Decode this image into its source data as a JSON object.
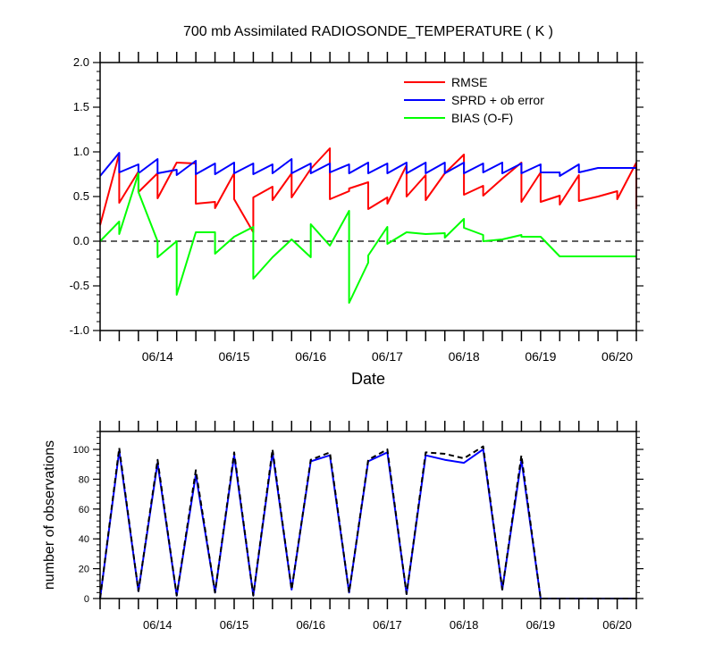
{
  "chart_data": [
    {
      "type": "line",
      "title": "700 mb Assimilated RADIOSONDE_TEMPERATURE ( K )",
      "xlabel": "Date",
      "ylabel": "",
      "xlim": [
        0,
        7
      ],
      "ylim": [
        -1.0,
        2.0
      ],
      "yticks": [
        -1.0,
        -0.5,
        0.0,
        0.5,
        1.0,
        1.5,
        2.0
      ],
      "ytick_labels": [
        "-1.0",
        "-0.5",
        "0.0",
        "0.5",
        "1.0",
        "1.5",
        "2.0"
      ],
      "x_tick_labels": [
        "06/14",
        "06/15",
        "06/16",
        "06/17",
        "06/18",
        "06/19",
        "06/20"
      ],
      "x_tick_positions": [
        0.75,
        1.75,
        2.75,
        3.75,
        4.75,
        5.75,
        6.75
      ],
      "x_units": "days after 06/13 06Z (6-hourly cycles)",
      "zero_line": "dashed",
      "legend": "top-right",
      "series": [
        {
          "name": "RMSE",
          "color": "#ff0000",
          "x": [
            0.0,
            0.25,
            0.25,
            0.5,
            0.5,
            0.75,
            0.75,
            1.0,
            1.0,
            1.25,
            1.25,
            1.5,
            1.5,
            1.75,
            1.75,
            2.0,
            2.0,
            2.25,
            2.25,
            2.5,
            2.5,
            2.75,
            2.75,
            3.0,
            3.0,
            3.25,
            3.25,
            3.5,
            3.5,
            3.75,
            3.75,
            4.0,
            4.0,
            4.25,
            4.25,
            4.5,
            4.5,
            4.75,
            4.75,
            5.0,
            5.0,
            5.25,
            5.25,
            5.5,
            5.5,
            5.75,
            5.75,
            6.0,
            6.0,
            6.25,
            6.25,
            6.5,
            6.5,
            6.75,
            6.75,
            7.0,
            7.0
          ],
          "y": [
            0.18,
            0.98,
            0.43,
            0.78,
            0.55,
            0.76,
            0.48,
            0.88,
            0.88,
            0.87,
            0.42,
            0.44,
            0.37,
            0.76,
            0.47,
            0.1,
            0.49,
            0.61,
            0.46,
            0.76,
            0.49,
            0.81,
            0.81,
            1.04,
            0.47,
            0.56,
            0.59,
            0.66,
            0.36,
            0.49,
            0.42,
            0.85,
            0.5,
            0.74,
            0.46,
            0.76,
            0.76,
            0.97,
            0.52,
            0.62,
            0.51,
            0.7,
            0.7,
            0.88,
            0.44,
            0.77,
            0.44,
            0.51,
            0.41,
            0.74,
            0.45,
            0.5,
            0.5,
            0.56,
            0.47,
            0.88,
            0.36
          ]
        },
        {
          "name": "SPRD + ob error",
          "color": "#0000ff",
          "x": [
            0.0,
            0.25,
            0.25,
            0.5,
            0.5,
            0.75,
            0.75,
            1.0,
            1.0,
            1.25,
            1.25,
            1.5,
            1.5,
            1.75,
            1.75,
            2.0,
            2.0,
            2.25,
            2.25,
            2.5,
            2.5,
            2.75,
            2.75,
            3.0,
            3.0,
            3.25,
            3.25,
            3.5,
            3.5,
            3.75,
            3.75,
            4.0,
            4.0,
            4.25,
            4.25,
            4.5,
            4.5,
            4.75,
            4.75,
            5.0,
            5.0,
            5.25,
            5.25,
            5.5,
            5.5,
            5.75,
            5.75,
            6.0,
            6.0,
            6.25,
            6.25,
            6.5,
            6.5,
            6.75,
            6.75,
            7.0
          ],
          "y": [
            0.73,
            0.99,
            0.77,
            0.86,
            0.76,
            0.92,
            0.76,
            0.8,
            0.74,
            0.9,
            0.75,
            0.87,
            0.75,
            0.88,
            0.76,
            0.87,
            0.75,
            0.86,
            0.76,
            0.92,
            0.76,
            0.87,
            0.76,
            0.87,
            0.77,
            0.86,
            0.76,
            0.88,
            0.76,
            0.87,
            0.76,
            0.88,
            0.76,
            0.88,
            0.76,
            0.88,
            0.76,
            0.88,
            0.76,
            0.87,
            0.77,
            0.88,
            0.76,
            0.87,
            0.76,
            0.86,
            0.77,
            0.77,
            0.73,
            0.86,
            0.77,
            0.82,
            0.82,
            0.82,
            0.82,
            0.82
          ]
        },
        {
          "name": "BIAS (O-F)",
          "color": "#00ff00",
          "x": [
            0.0,
            0.25,
            0.25,
            0.5,
            0.5,
            0.75,
            0.75,
            1.0,
            1.0,
            1.25,
            1.25,
            1.5,
            1.5,
            1.75,
            1.75,
            2.0,
            2.0,
            2.25,
            2.25,
            2.5,
            2.5,
            2.75,
            2.75,
            3.0,
            3.0,
            3.25,
            3.25,
            3.5,
            3.5,
            3.75,
            3.75,
            4.0,
            4.0,
            4.25,
            4.25,
            4.5,
            4.5,
            4.75,
            4.75,
            5.0,
            5.0,
            5.25,
            5.25,
            5.5,
            5.5,
            5.75,
            5.75,
            6.0,
            6.0,
            6.25,
            6.25,
            6.5,
            6.5,
            6.75,
            6.75,
            7.0
          ],
          "y": [
            0.0,
            0.22,
            0.08,
            0.76,
            0.55,
            0.0,
            -0.18,
            0.0,
            -0.6,
            0.1,
            0.1,
            0.1,
            -0.14,
            0.05,
            0.05,
            0.16,
            -0.42,
            -0.18,
            -0.18,
            0.02,
            0.02,
            -0.18,
            0.19,
            -0.05,
            -0.05,
            0.34,
            -0.69,
            -0.24,
            -0.16,
            0.16,
            -0.03,
            0.1,
            0.1,
            0.08,
            0.08,
            0.09,
            0.04,
            0.25,
            0.15,
            0.07,
            0.0,
            0.02,
            0.02,
            0.07,
            0.05,
            0.05,
            0.05,
            -0.17,
            -0.17,
            -0.17,
            -0.17,
            -0.17,
            -0.17,
            -0.17,
            -0.17,
            -0.17
          ]
        }
      ]
    },
    {
      "type": "line",
      "title": "",
      "xlabel": "",
      "ylabel": "number of observations",
      "xlim": [
        0,
        7
      ],
      "ylim": [
        0,
        112
      ],
      "yticks": [
        0,
        20,
        40,
        60,
        80,
        100
      ],
      "ytick_labels": [
        "0",
        "20",
        "40",
        "60",
        "80",
        "100"
      ],
      "x_tick_labels": [
        "06/14",
        "06/15",
        "06/16",
        "06/17",
        "06/18",
        "06/19",
        "06/20"
      ],
      "x_tick_positions": [
        0.75,
        1.75,
        2.75,
        3.75,
        4.75,
        5.75,
        6.75
      ],
      "series": [
        {
          "name": "",
          "color": "#0000ff",
          "style": "solid",
          "x": [
            0.0,
            0.25,
            0.5,
            0.75,
            1.0,
            1.25,
            1.5,
            1.75,
            2.0,
            2.25,
            2.5,
            2.75,
            3.0,
            3.25,
            3.5,
            3.75,
            4.0,
            4.25,
            4.5,
            4.75,
            5.0,
            5.25,
            5.5,
            5.75,
            6.0,
            6.25,
            6.5,
            6.75,
            7.0
          ],
          "y": [
            0,
            99,
            5,
            91,
            2,
            83,
            4,
            96,
            2,
            98,
            6,
            92,
            96,
            4,
            92,
            98,
            3,
            96,
            93,
            91,
            100,
            6,
            93,
            0,
            0,
            0,
            0,
            0,
            0
          ]
        },
        {
          "name": "",
          "color": "#000000",
          "style": "dashed",
          "x": [
            0.0,
            0.25,
            0.5,
            0.75,
            1.0,
            1.25,
            1.5,
            1.75,
            2.0,
            2.25,
            2.5,
            2.75,
            3.0,
            3.25,
            3.5,
            3.75,
            4.0,
            4.25,
            4.5,
            4.75,
            5.0,
            5.25,
            5.5,
            5.75,
            6.0,
            6.25,
            6.5,
            6.75,
            7.0
          ],
          "y": [
            0,
            101,
            5,
            93,
            2,
            86,
            4,
            98,
            2,
            100,
            6,
            93,
            98,
            4,
            93,
            100,
            3,
            98,
            97,
            94,
            102,
            6,
            96,
            0,
            0,
            0,
            0,
            0,
            0
          ]
        }
      ]
    }
  ]
}
